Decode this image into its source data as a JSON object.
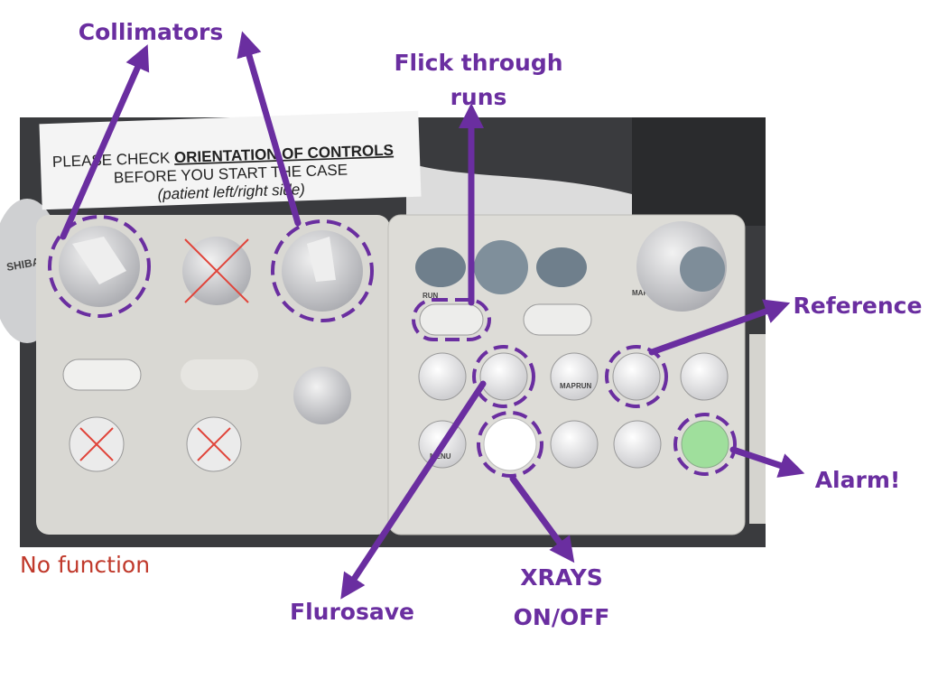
{
  "annotations": {
    "collimators": "Collimators",
    "flick_through_runs": [
      "Flick through",
      "runs"
    ],
    "reference": "Reference",
    "alarm": "Alarm!",
    "xrays": [
      "XRAYS",
      "ON/OFF"
    ],
    "flurosave": "Flurosave",
    "no_function": "No function"
  },
  "sign": {
    "line1": [
      "PLEASE CHECK",
      "ORIENTATION OF CONTROLS"
    ],
    "line2": "BEFORE YOU START THE CASE",
    "line3": "(patient left/right side)"
  },
  "panel": {
    "brand": "SHIBA",
    "run": "RUN",
    "map": "MAP",
    "menu": "MENU"
  }
}
